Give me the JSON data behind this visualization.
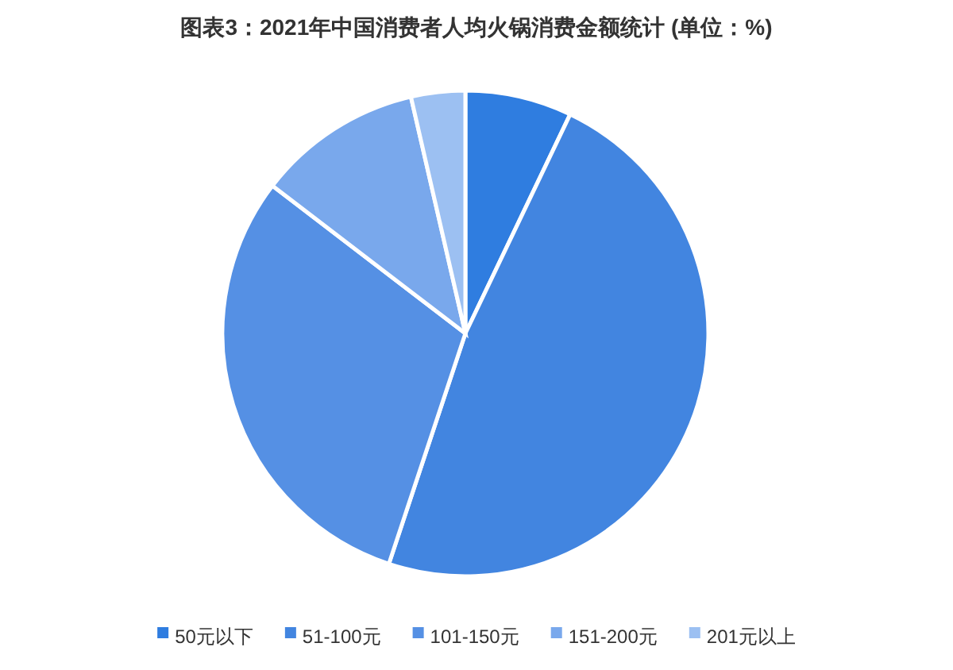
{
  "chart_data": {
    "type": "pie",
    "title": "图表3：2021年中国消费者人均火锅消费金额统计 (单位：%)",
    "categories": [
      "50元以下",
      "51-100元",
      "101-150元",
      "151-200元",
      "201元以上"
    ],
    "values": [
      7.1,
      48,
      30.3,
      11,
      3.6
    ],
    "colors": [
      "#2f7de0",
      "#4285e0",
      "#5590e4",
      "#79a8ec",
      "#9cc0f2"
    ],
    "legend": "bottom"
  }
}
